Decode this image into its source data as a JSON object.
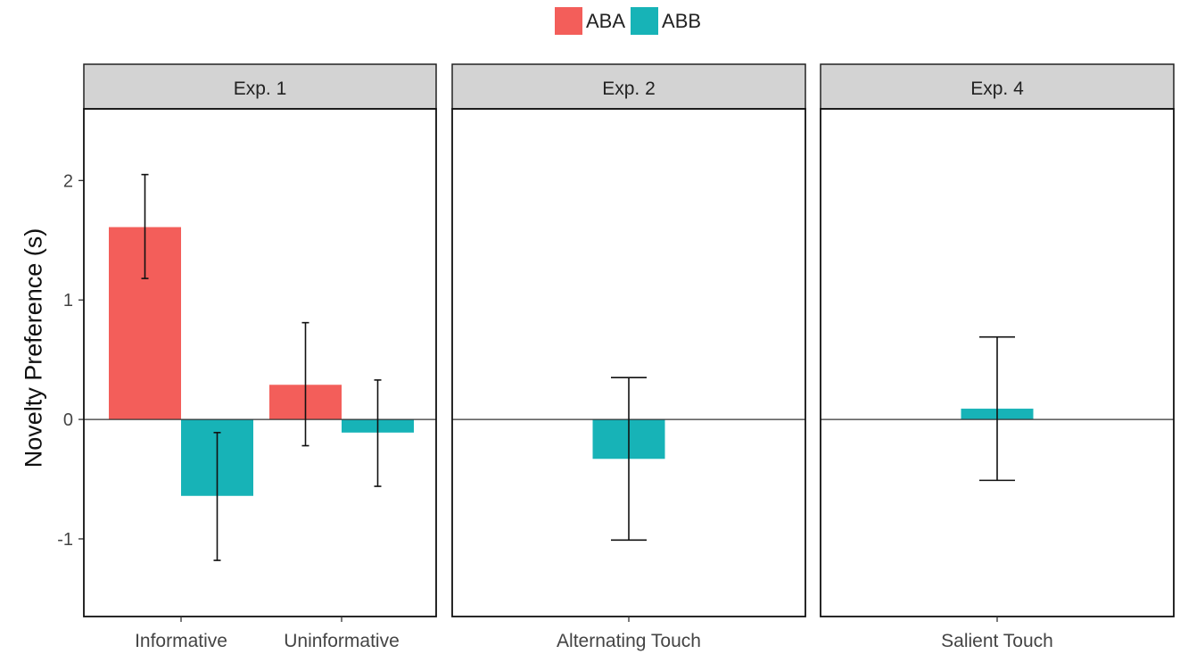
{
  "legend": {
    "items": [
      {
        "label": "ABA",
        "color": "#F35E5A"
      },
      {
        "label": "ABB",
        "color": "#17B3B7"
      }
    ]
  },
  "chart_data": {
    "type": "bar",
    "ylabel": "Novelty Preference (s)",
    "xlabel": "",
    "ylim": [
      -1.65,
      2.6
    ],
    "yticks": [
      -1,
      0,
      1,
      2
    ],
    "grid": false,
    "legend_position": "top",
    "panels": [
      {
        "title": "Exp. 1",
        "categories": [
          "Informative",
          "Uninformative"
        ],
        "series": [
          {
            "name": "ABA",
            "values": [
              1.61,
              0.29
            ],
            "err_low": [
              1.18,
              -0.22
            ],
            "err_high": [
              2.05,
              0.81
            ]
          },
          {
            "name": "ABB",
            "values": [
              -0.64,
              -0.11
            ],
            "err_low": [
              -1.18,
              -0.56
            ],
            "err_high": [
              -0.11,
              0.33
            ]
          }
        ]
      },
      {
        "title": "Exp. 2",
        "categories": [
          "Alternating Touch"
        ],
        "series": [
          {
            "name": "ABB",
            "values": [
              -0.33
            ],
            "err_low": [
              -1.01
            ],
            "err_high": [
              0.35
            ]
          }
        ]
      },
      {
        "title": "Exp. 4",
        "categories": [
          "Salient Touch"
        ],
        "series": [
          {
            "name": "ABB",
            "values": [
              0.09
            ],
            "err_low": [
              -0.51
            ],
            "err_high": [
              0.69
            ]
          }
        ]
      }
    ]
  }
}
